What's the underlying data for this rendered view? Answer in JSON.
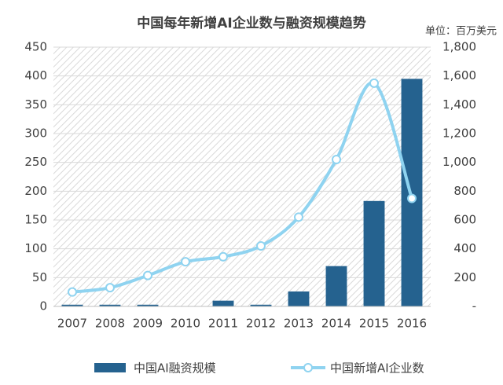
{
  "chart_data": {
    "type": "bar_line",
    "title": "中国每年新增AI企业数与融资规模趋势",
    "unit": "单位：百万美元",
    "categories": [
      "2007",
      "2008",
      "2009",
      "2010",
      "2011",
      "2012",
      "2013",
      "2014",
      "2015",
      "2016"
    ],
    "series": [
      {
        "name": "中国AI融资规模",
        "type": "bar",
        "color": "#25628f",
        "values": [
          3,
          3,
          3,
          0,
          10,
          3,
          26,
          70,
          183,
          395
        ]
      },
      {
        "name": "中国新增AI企业数",
        "type": "line",
        "axis": "y2",
        "color": "#8fd3f0",
        "values": [
          100,
          130,
          215,
          310,
          345,
          420,
          620,
          1020,
          1550,
          750
        ]
      }
    ],
    "ylim": [
      0,
      450
    ],
    "yticks": [
      0,
      50,
      100,
      150,
      200,
      250,
      300,
      350,
      400,
      450
    ],
    "y2lim": [
      0,
      1800
    ],
    "y2ticks": [
      {
        "value": 0,
        "label": "-"
      },
      200,
      400,
      600,
      800,
      {
        "value": 1000,
        "label": "1,000"
      },
      {
        "value": 1200,
        "label": "1,200"
      },
      {
        "value": 1400,
        "label": "1,400"
      },
      {
        "value": 1600,
        "label": "1,600"
      },
      {
        "value": 1800,
        "label": "1,800"
      }
    ],
    "grid": true
  }
}
